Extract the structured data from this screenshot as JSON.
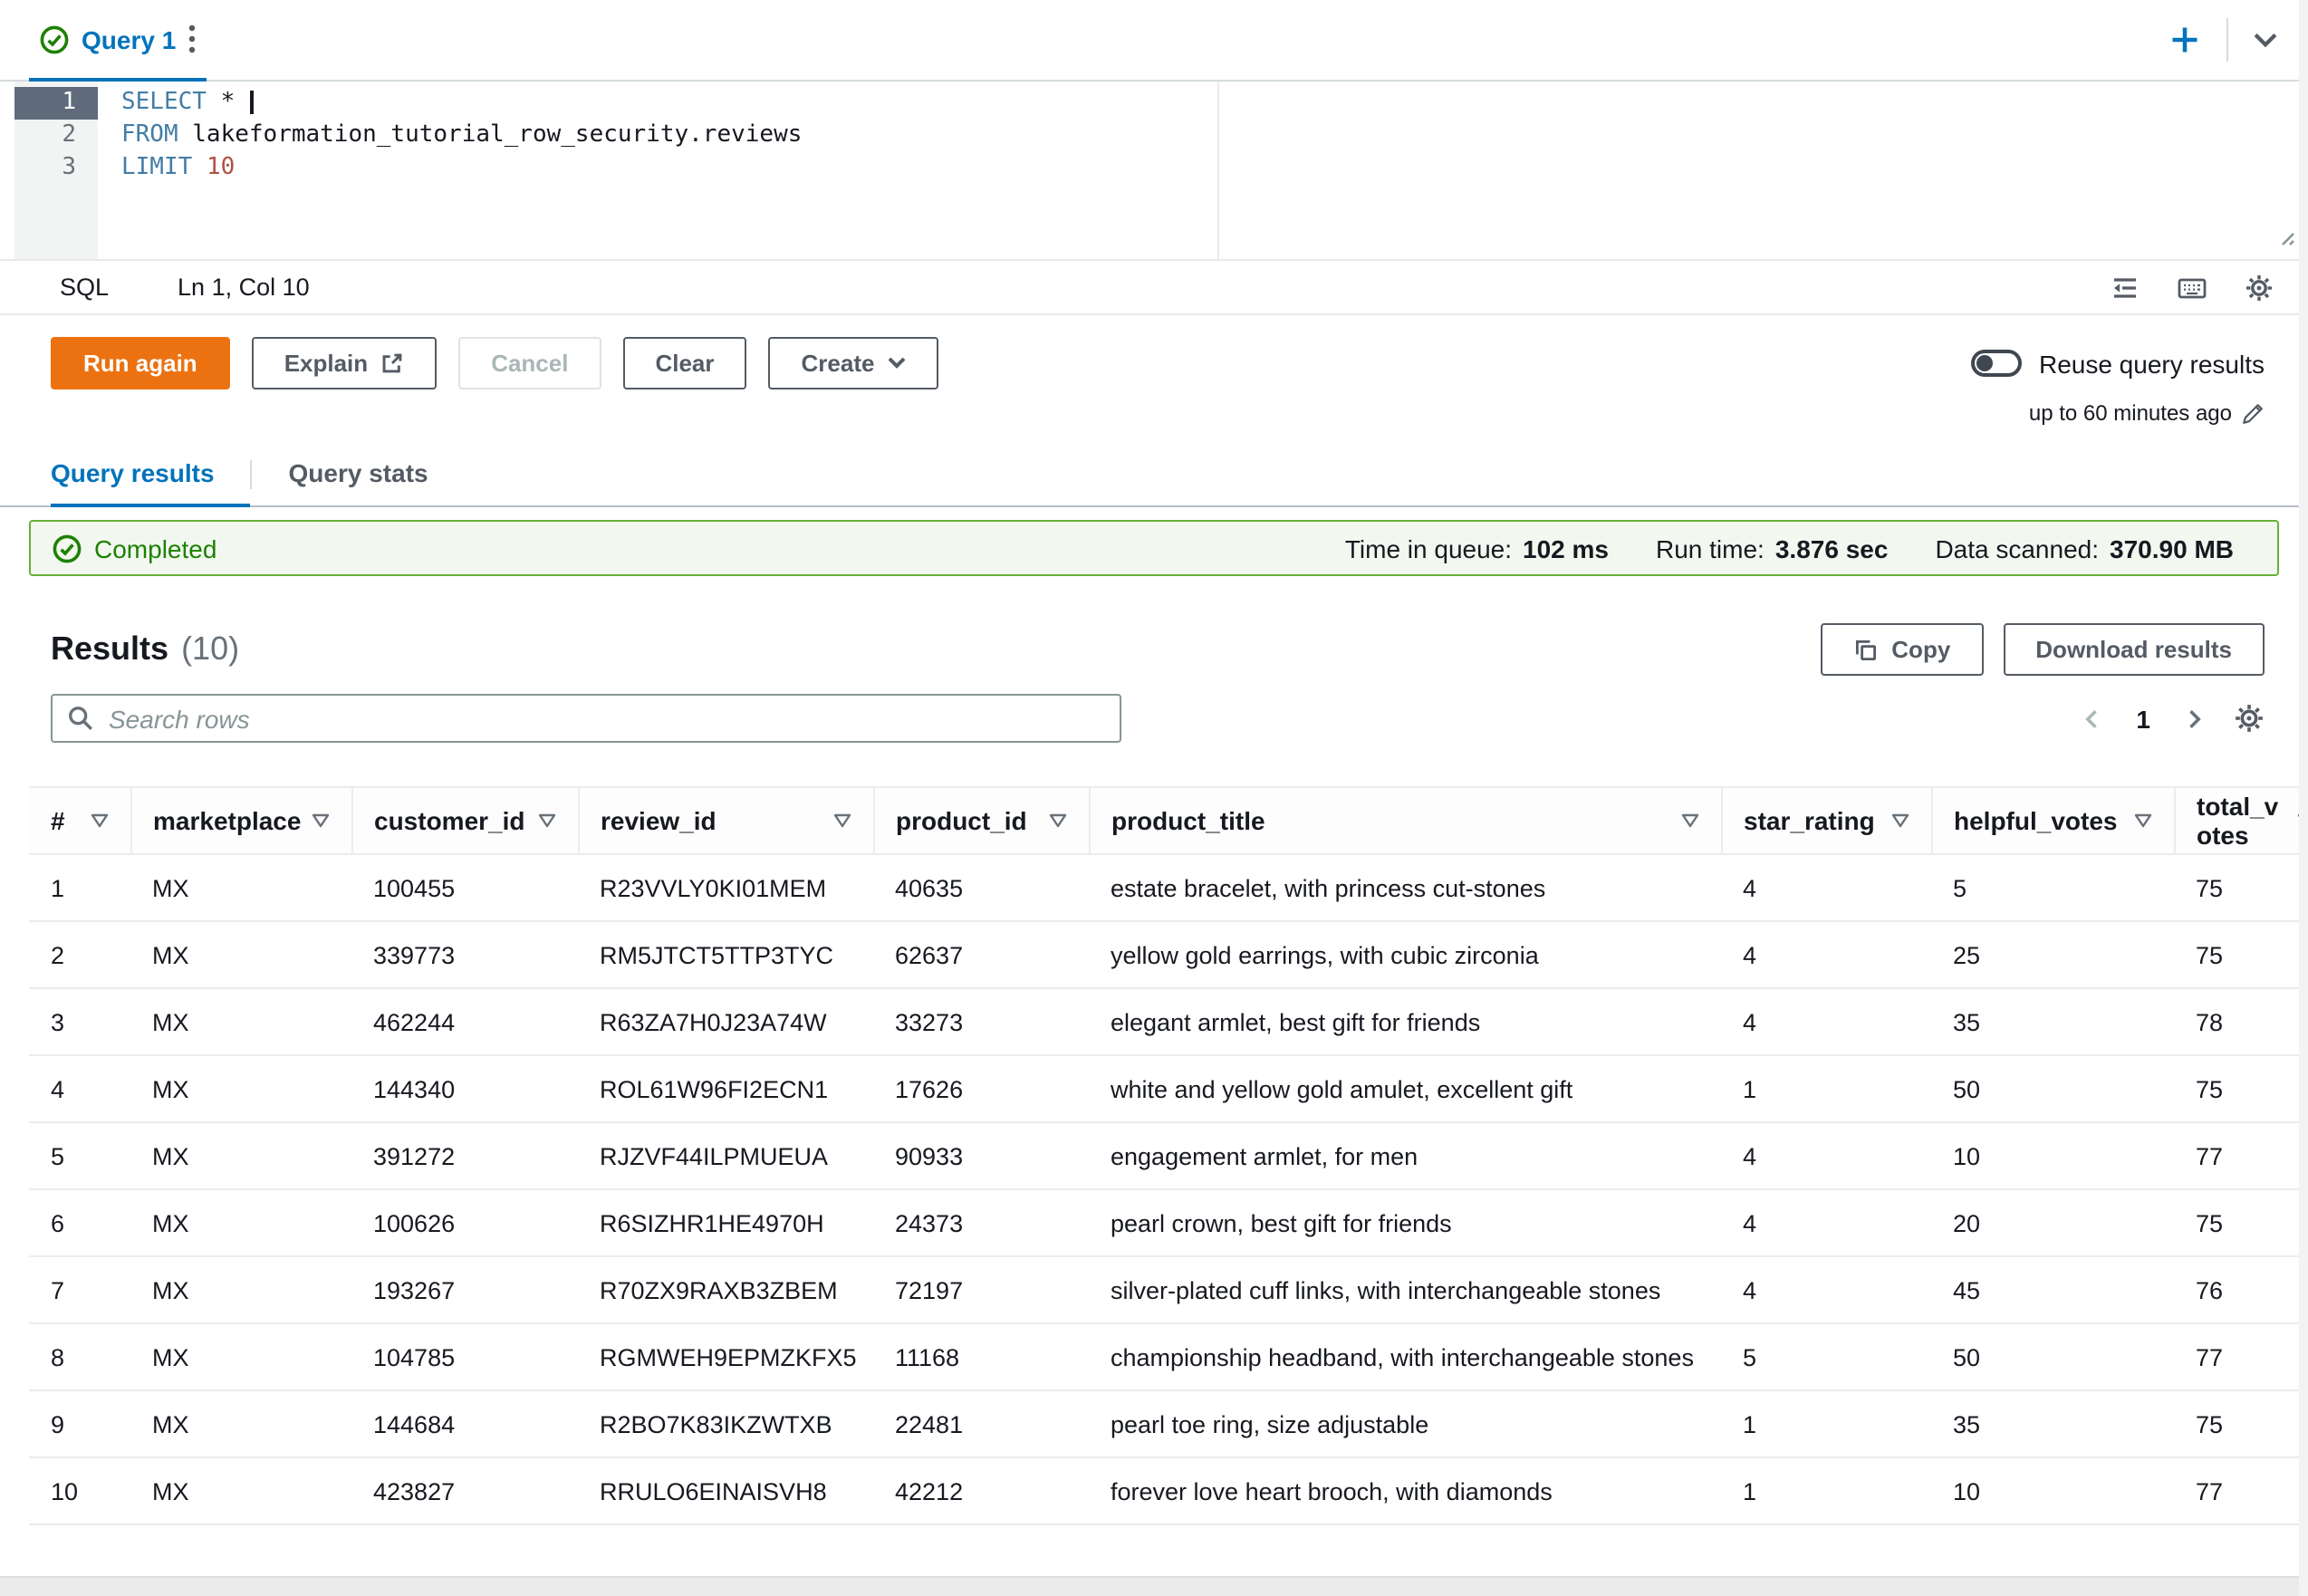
{
  "colors": {
    "accent_blue": "#0073bb",
    "primary_orange": "#ec7211",
    "success_green": "#1d8102",
    "text_dark": "#16191f",
    "text_secondary": "#545b64",
    "banner_background": "#f2f8f0",
    "table_border": "#eaeded"
  },
  "icons": {
    "tab_status": "check-circle",
    "tab_menu": "kebab-vertical",
    "new_tab": "plus",
    "tab_overflow": "caret-down",
    "format_query": "format-lines",
    "keyboard_shortcuts": "keyboard",
    "editor_settings": "gear",
    "explain_external": "external-link",
    "edit_duration": "pencil",
    "search": "magnifying-glass",
    "copy": "copy",
    "pagination_prev": "chevron-left",
    "pagination_next": "chevron-right",
    "table_preferences": "gear",
    "column_filter": "caret-down-outline",
    "completed_status": "check-circle"
  },
  "tab_bar": {
    "query_tab_label": "Query 1"
  },
  "editor": {
    "active_line": 0,
    "lines": [
      {
        "number": "1",
        "segments": [
          {
            "text": "SELECT",
            "type": "keyword"
          },
          {
            "text": " *",
            "type": "plain"
          }
        ]
      },
      {
        "number": "2",
        "segments": [
          {
            "text": "FROM",
            "type": "keyword"
          },
          {
            "text": " lakeformation_tutorial_row_security.reviews",
            "type": "plain"
          }
        ]
      },
      {
        "number": "3",
        "segments": [
          {
            "text": "LIMIT",
            "type": "keyword"
          },
          {
            "text": " ",
            "type": "plain"
          },
          {
            "text": "10",
            "type": "number"
          }
        ]
      }
    ]
  },
  "status_bar": {
    "language": "SQL",
    "cursor_position": "Ln 1, Col 10"
  },
  "actions": {
    "run_again": "Run again",
    "explain": "Explain",
    "cancel": "Cancel",
    "clear": "Clear",
    "create": "Create",
    "reuse_label": "Reuse query results",
    "reuse_note": "up to 60 minutes ago"
  },
  "result_tabs": {
    "results": "Query results",
    "stats": "Query stats"
  },
  "banner": {
    "status": "Completed",
    "metrics": [
      {
        "label": "Time in queue:",
        "value": "102 ms"
      },
      {
        "label": "Run time:",
        "value": "3.876 sec"
      },
      {
        "label": "Data scanned:",
        "value": "370.90 MB"
      }
    ]
  },
  "results": {
    "title": "Results",
    "count": "(10)",
    "copy_button": "Copy",
    "download_button": "Download results",
    "search_placeholder": "Search rows",
    "current_page": "1",
    "columns": [
      "#",
      "marketplace",
      "customer_id",
      "review_id",
      "product_id",
      "product_title",
      "star_rating",
      "helpful_votes",
      "total_votes"
    ],
    "rows": [
      [
        "1",
        "MX",
        "100455",
        "R23VVLY0KI01MEM",
        "40635",
        "estate bracelet, with princess cut-stones",
        "4",
        "5",
        "75"
      ],
      [
        "2",
        "MX",
        "339773",
        "RM5JTCT5TTP3TYC",
        "62637",
        "yellow gold earrings, with cubic zirconia",
        "4",
        "25",
        "75"
      ],
      [
        "3",
        "MX",
        "462244",
        "R63ZA7H0J23A74W",
        "33273",
        "elegant armlet, best gift for friends",
        "4",
        "35",
        "78"
      ],
      [
        "4",
        "MX",
        "144340",
        "ROL61W96FI2ECN1",
        "17626",
        "white and yellow gold amulet, excellent gift",
        "1",
        "50",
        "75"
      ],
      [
        "5",
        "MX",
        "391272",
        "RJZVF44ILPMUEUA",
        "90933",
        "engagement armlet, for men",
        "4",
        "10",
        "77"
      ],
      [
        "6",
        "MX",
        "100626",
        "R6SIZHR1HE4970H",
        "24373",
        "pearl crown, best gift for friends",
        "4",
        "20",
        "75"
      ],
      [
        "7",
        "MX",
        "193267",
        "R70ZX9RAXB3ZBEM",
        "72197",
        "silver-plated cuff links, with interchangeable stones",
        "4",
        "45",
        "76"
      ],
      [
        "8",
        "MX",
        "104785",
        "RGMWEH9EPMZKFX5",
        "11168",
        "championship headband, with interchangeable stones",
        "5",
        "50",
        "77"
      ],
      [
        "9",
        "MX",
        "144684",
        "R2BO7K83IKZWTXB",
        "22481",
        "pearl toe ring, size adjustable",
        "1",
        "35",
        "75"
      ],
      [
        "10",
        "MX",
        "423827",
        "RRULO6EINAISVH8",
        "42212",
        "forever love heart brooch, with diamonds",
        "1",
        "10",
        "77"
      ]
    ]
  }
}
